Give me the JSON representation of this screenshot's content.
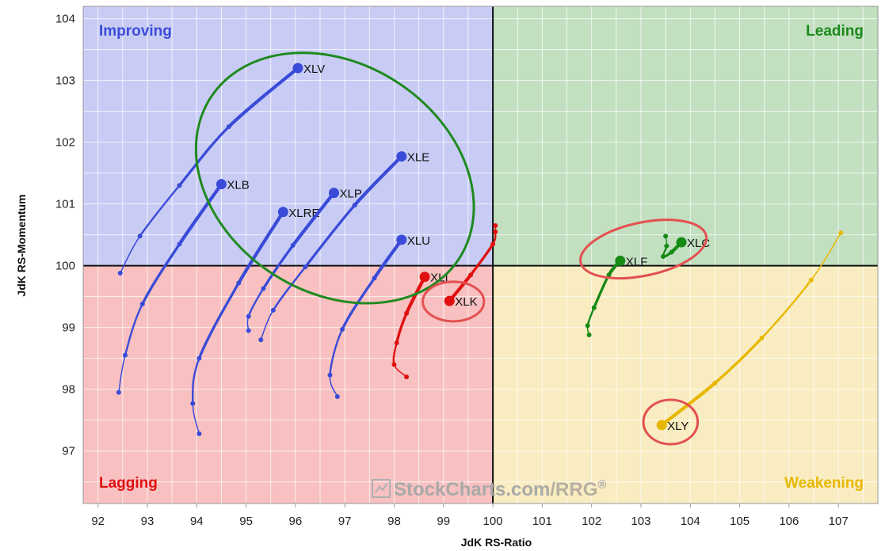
{
  "chart_data": {
    "type": "scatter",
    "title": "",
    "xlabel": "JdK RS-Ratio",
    "ylabel": "JdK RS-Momentum",
    "xlim": [
      91.7,
      107.8
    ],
    "ylim": [
      96.15,
      104.2
    ],
    "xticks": [
      92,
      93,
      94,
      95,
      96,
      97,
      98,
      99,
      100,
      101,
      102,
      103,
      104,
      105,
      106,
      107
    ],
    "yticks": [
      97,
      98,
      99,
      100,
      101,
      102,
      103,
      104
    ],
    "center": [
      100,
      100
    ],
    "grid": true,
    "quadrants": [
      {
        "name": "Improving",
        "position": "top-left",
        "fill": "#c8ccf5",
        "text_color": "#3a4bd8"
      },
      {
        "name": "Leading",
        "position": "top-right",
        "fill": "#c2dfc0",
        "text_color": "#1a8a1a"
      },
      {
        "name": "Lagging",
        "position": "bottom-left",
        "fill": "#f8c0c0",
        "text_color": "#e01010"
      },
      {
        "name": "Weakening",
        "position": "bottom-right",
        "fill": "#f8ecc0",
        "text_color": "#e8b800"
      }
    ],
    "watermark": {
      "brand": "StockCharts.com",
      "suffix": "/RRG",
      "mark": "®"
    },
    "series": [
      {
        "name": "XLV",
        "color": "#3a4bd8",
        "points": [
          [
            92.45,
            99.88
          ],
          [
            92.85,
            100.48
          ],
          [
            93.65,
            101.3
          ],
          [
            94.65,
            102.25
          ],
          [
            96.05,
            103.2
          ]
        ]
      },
      {
        "name": "XLB",
        "color": "#3a4bd8",
        "points": [
          [
            92.42,
            97.95
          ],
          [
            92.55,
            98.55
          ],
          [
            92.9,
            99.38
          ],
          [
            93.65,
            100.35
          ],
          [
            94.5,
            101.32
          ]
        ]
      },
      {
        "name": "XLRE",
        "color": "#3a4bd8",
        "points": [
          [
            94.05,
            97.28
          ],
          [
            93.92,
            97.77
          ],
          [
            94.05,
            98.5
          ],
          [
            94.85,
            99.72
          ],
          [
            95.75,
            100.87
          ]
        ]
      },
      {
        "name": "XLP",
        "color": "#3a4bd8",
        "points": [
          [
            95.05,
            98.95
          ],
          [
            95.05,
            99.18
          ],
          [
            95.35,
            99.63
          ],
          [
            95.95,
            100.33
          ],
          [
            96.78,
            101.18
          ]
        ]
      },
      {
        "name": "XLE",
        "color": "#3a4bd8",
        "points": [
          [
            95.3,
            98.8
          ],
          [
            95.55,
            99.28
          ],
          [
            96.2,
            99.98
          ],
          [
            97.2,
            100.98
          ],
          [
            98.15,
            101.77
          ]
        ]
      },
      {
        "name": "XLU",
        "color": "#3a4bd8",
        "points": [
          [
            96.85,
            97.88
          ],
          [
            96.7,
            98.23
          ],
          [
            96.95,
            98.97
          ],
          [
            97.6,
            99.8
          ],
          [
            98.15,
            100.42
          ]
        ]
      },
      {
        "name": "XLI",
        "color": "#e01010",
        "points": [
          [
            98.25,
            98.2
          ],
          [
            98.0,
            98.4
          ],
          [
            98.05,
            98.75
          ],
          [
            98.25,
            99.23
          ],
          [
            98.62,
            99.82
          ]
        ]
      },
      {
        "name": "XLK",
        "color": "#e01010",
        "points": [
          [
            100.05,
            100.65
          ],
          [
            100.05,
            100.55
          ],
          [
            100.0,
            100.35
          ],
          [
            99.55,
            99.85
          ],
          [
            99.12,
            99.43
          ]
        ]
      },
      {
        "name": "XLF",
        "color": "#158a15",
        "points": [
          [
            101.95,
            98.88
          ],
          [
            101.92,
            99.03
          ],
          [
            102.05,
            99.32
          ],
          [
            102.35,
            99.85
          ],
          [
            102.58,
            100.08
          ]
        ]
      },
      {
        "name": "XLC",
        "color": "#158a15",
        "points": [
          [
            103.5,
            100.48
          ],
          [
            103.52,
            100.32
          ],
          [
            103.45,
            100.15
          ],
          [
            103.62,
            100.22
          ],
          [
            103.82,
            100.38
          ]
        ]
      },
      {
        "name": "XLY",
        "color": "#e8b800",
        "points": [
          [
            107.05,
            100.53
          ],
          [
            106.45,
            99.77
          ],
          [
            105.45,
            98.83
          ],
          [
            104.5,
            98.1
          ],
          [
            103.42,
            97.42
          ]
        ]
      }
    ],
    "highlights": [
      {
        "shape": "ellipse",
        "color": "#1f8a1f",
        "center": [
          96.8,
          101.42
        ],
        "radii": [
          3.0,
          1.85
        ],
        "rotation": 33
      },
      {
        "shape": "ellipse",
        "color": "#e35050",
        "center": [
          99.2,
          99.42
        ],
        "radii": [
          0.62,
          0.32
        ],
        "rotation": 0
      },
      {
        "shape": "ellipse",
        "color": "#e35050",
        "center": [
          103.05,
          100.27
        ],
        "radii": [
          1.3,
          0.43
        ],
        "rotation": -12
      },
      {
        "shape": "ellipse",
        "color": "#e35050",
        "center": [
          103.6,
          97.47
        ],
        "radii": [
          0.55,
          0.36
        ],
        "rotation": 0
      }
    ]
  }
}
